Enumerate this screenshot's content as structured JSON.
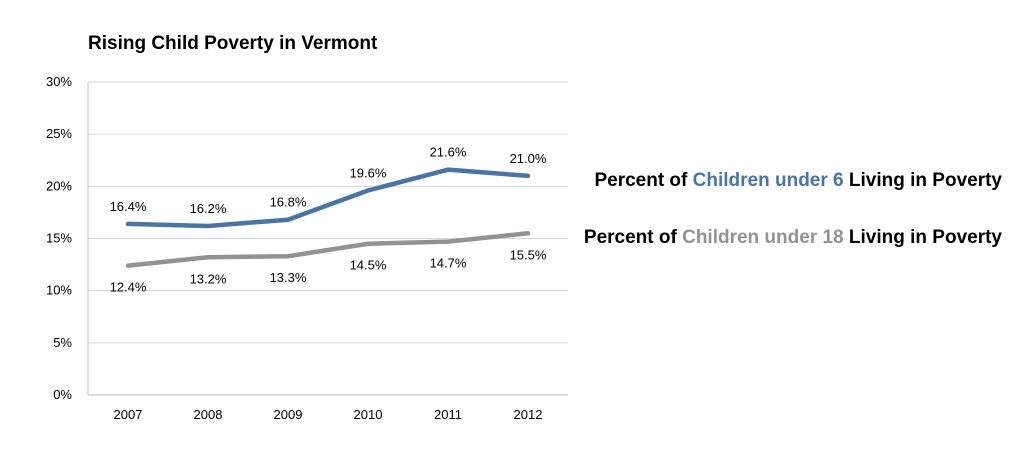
{
  "chart_data": {
    "type": "line",
    "title": "Rising Child Poverty in Vermont",
    "categories": [
      "2007",
      "2008",
      "2009",
      "2010",
      "2011",
      "2012"
    ],
    "y_ticks": [
      "0%",
      "5%",
      "10%",
      "15%",
      "20%",
      "25%",
      "30%"
    ],
    "ylim": [
      0,
      30
    ],
    "y_step": 5,
    "grid": true,
    "legend_position": "right",
    "series": [
      {
        "name": "Children under 6",
        "color": "#4a74a5",
        "values": [
          16.4,
          16.2,
          16.8,
          19.6,
          21.6,
          21.0
        ],
        "data_labels": [
          "16.4%",
          "16.2%",
          "16.8%",
          "19.6%",
          "21.6%",
          "21.0%"
        ],
        "label_placement": "above",
        "legend": {
          "prefix": "Percent of ",
          "highlight": "Children under 6",
          "suffix": " Living in Poverty"
        }
      },
      {
        "name": "Children under 18",
        "color": "#929292",
        "values": [
          12.4,
          13.2,
          13.3,
          14.5,
          14.7,
          15.5
        ],
        "data_labels": [
          "12.4%",
          "13.2%",
          "13.3%",
          "14.5%",
          "14.7%",
          "15.5%"
        ],
        "label_placement": "below",
        "legend": {
          "prefix": "Percent of ",
          "highlight": "Children under 18",
          "suffix": " Living in Poverty"
        }
      }
    ]
  }
}
